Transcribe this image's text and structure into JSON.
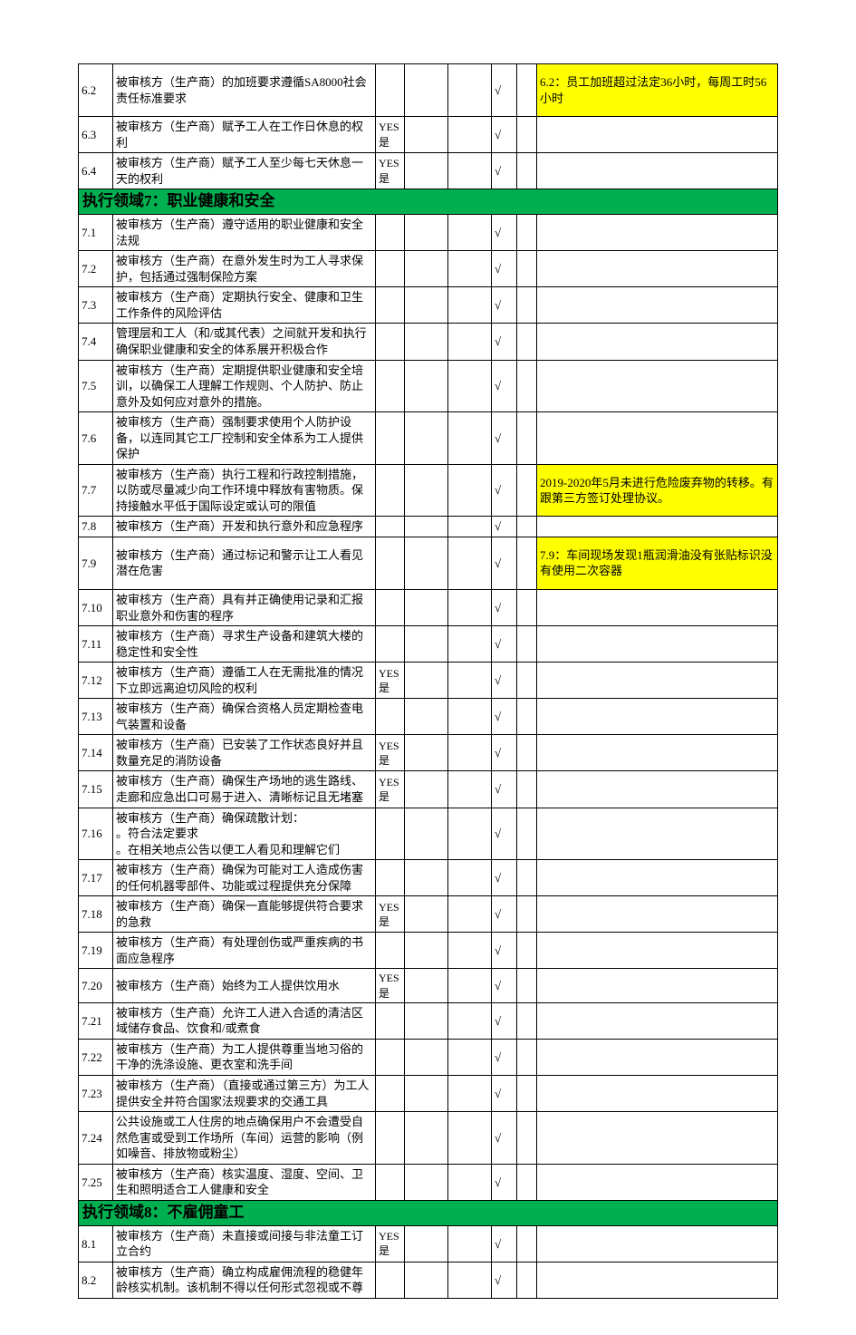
{
  "colors": {
    "section_bg": "#00b050",
    "highlight_bg": "#ffff00",
    "border": "#000000",
    "text": "#000000"
  },
  "checkmark": "√",
  "sections": [
    {
      "rows": [
        {
          "num": "6.2",
          "desc": "被审核方（生产商）的加班要求遵循SA8000社会责任标准要求",
          "yes": "",
          "check": "√",
          "note": "6.2：员工加班超过法定36小时，每周工时56小时",
          "note_highlight": true,
          "tall": true
        },
        {
          "num": "6.3",
          "desc": "被审核方（生产商）赋予工人在工作日休息的权利",
          "yes": "YES是",
          "check": "√",
          "note": ""
        },
        {
          "num": "6.4",
          "desc": "被审核方（生产商）赋予工人至少每七天休息一天的权利",
          "yes": "YES是",
          "check": "√",
          "note": ""
        }
      ]
    },
    {
      "title": "执行领域7：职业健康和安全",
      "rows": [
        {
          "num": "7.1",
          "desc": "被审核方（生产商）遵守适用的职业健康和安全法规",
          "yes": "",
          "check": "√",
          "note": ""
        },
        {
          "num": "7.2",
          "desc": "被审核方（生产商）在意外发生时为工人寻求保护，包括通过强制保险方案",
          "yes": "",
          "check": "√",
          "note": ""
        },
        {
          "num": "7.3",
          "desc": "被审核方（生产商）定期执行安全、健康和卫生工作条件的风险评估",
          "yes": "",
          "check": "√",
          "note": ""
        },
        {
          "num": "7.4",
          "desc": "管理层和工人（和/或其代表）之间就开发和执行确保职业健康和安全的体系展开积极合作",
          "yes": "",
          "check": "√",
          "note": ""
        },
        {
          "num": "7.5",
          "desc": "被审核方（生产商）定期提供职业健康和安全培训，以确保工人理解工作规则、个人防护、防止意外及如何应对意外的措施。",
          "yes": "",
          "check": "√",
          "note": ""
        },
        {
          "num": "7.6",
          "desc": "被审核方（生产商）强制要求使用个人防护设备，以连同其它工厂控制和安全体系为工人提供保护",
          "yes": "",
          "check": "√",
          "note": ""
        },
        {
          "num": "7.7",
          "desc": "被审核方（生产商）执行工程和行政控制措施，以防或尽量减少向工作环境中释放有害物质。保持接触水平低于国际设定或认可的限值",
          "yes": "",
          "check": "√",
          "note": "2019-2020年5月未进行危险废弃物的转移。有跟第三方签订处理协议。",
          "note_highlight": true
        },
        {
          "num": "7.8",
          "desc": "被审核方（生产商）开发和执行意外和应急程序",
          "yes": "",
          "check": "√",
          "note": ""
        },
        {
          "num": "7.9",
          "desc": "被审核方（生产商）通过标记和警示让工人看见潜在危害",
          "yes": "",
          "check": "√",
          "note": "7.9：车间现场发现1瓶润滑油没有张贴标识没有使用二次容器",
          "note_highlight": true,
          "tall": true
        },
        {
          "num": "7.10",
          "desc": "被审核方（生产商）具有并正确使用记录和汇报职业意外和伤害的程序",
          "yes": "",
          "check": "√",
          "note": ""
        },
        {
          "num": "7.11",
          "desc": "被审核方（生产商）寻求生产设备和建筑大楼的稳定性和安全性",
          "yes": "",
          "check": "√",
          "note": ""
        },
        {
          "num": "7.12",
          "desc": "被审核方（生产商）遵循工人在无需批准的情况下立即远离迫切风险的权利",
          "yes": "YES是",
          "check": "√",
          "note": ""
        },
        {
          "num": "7.13",
          "desc": "被审核方（生产商）确保合资格人员定期检查电气装置和设备",
          "yes": "",
          "check": "√",
          "note": ""
        },
        {
          "num": "7.14",
          "desc": "被审核方（生产商）已安装了工作状态良好并且数量充足的消防设备",
          "yes": "YES是",
          "check": "√",
          "note": ""
        },
        {
          "num": "7.15",
          "desc": "被审核方（生产商）确保生产场地的逃生路线、走廊和应急出口可易于进入、清晰标记且无堵塞",
          "yes": "YES是",
          "check": "√",
          "note": ""
        },
        {
          "num": "7.16",
          "desc": "被审核方（生产商）确保疏散计划：\n。符合法定要求\n。在相关地点公告以便工人看见和理解它们",
          "yes": "",
          "check": "√",
          "note": ""
        },
        {
          "num": "7.17",
          "desc": "被审核方（生产商）确保为可能对工人造成伤害的任何机器零部件、功能或过程提供充分保障",
          "yes": "",
          "check": "√",
          "note": ""
        },
        {
          "num": "7.18",
          "desc": "被审核方（生产商）确保一直能够提供符合要求的急救",
          "yes": "YES是",
          "check": "√",
          "note": ""
        },
        {
          "num": "7.19",
          "desc": "被审核方（生产商）有处理创伤或严重疾病的书面应急程序",
          "yes": "",
          "check": "√",
          "note": ""
        },
        {
          "num": "7.20",
          "desc": "被审核方（生产商）始终为工人提供饮用水",
          "yes": "YES是",
          "check": "√",
          "note": ""
        },
        {
          "num": "7.21",
          "desc": "被审核方（生产商）允许工人进入合适的清洁区域储存食品、饮食和/或煮食",
          "yes": "",
          "check": "√",
          "note": ""
        },
        {
          "num": "7.22",
          "desc": "被审核方（生产商）为工人提供尊重当地习俗的干净的洗涤设施、更衣室和洗手间",
          "yes": "",
          "check": "√",
          "note": ""
        },
        {
          "num": "7.23",
          "desc": "被审核方（生产商）（直接或通过第三方）为工人提供安全并符合国家法规要求的交通工具",
          "yes": "",
          "check": "√",
          "note": ""
        },
        {
          "num": "7.24",
          "desc": "公共设施或工人住房的地点确保用户不会遭受自然危害或受到工作场所（车间）运营的影响（例如噪音、排放物或粉尘）",
          "yes": "",
          "check": "√",
          "note": ""
        },
        {
          "num": "7.25",
          "desc": "被审核方（生产商）核实温度、湿度、空间、卫生和照明适合工人健康和安全",
          "yes": "",
          "check": "√",
          "note": ""
        }
      ]
    },
    {
      "title": "执行领域8：不雇佣童工",
      "rows": [
        {
          "num": "8.1",
          "desc": "被审核方（生产商）未直接或间接与非法童工订立合约",
          "yes": "YES是",
          "check": "√",
          "note": ""
        },
        {
          "num": "8.2",
          "desc": "被审核方（生产商）确立构成雇佣流程的稳健年龄核实机制。该机制不得以任何形式忽视或不尊",
          "yes": "",
          "check": "√",
          "note": ""
        }
      ]
    }
  ]
}
